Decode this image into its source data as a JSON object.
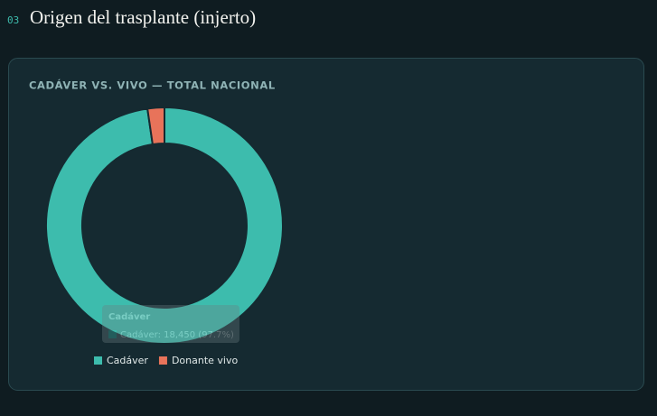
{
  "section_number": "03",
  "section_title": "Origen del trasplante (injerto)",
  "chart_data": {
    "type": "pie",
    "title": "CADÁVER VS. VIVO — TOTAL NACIONAL",
    "categories": [
      "Cadáver",
      "Donante vivo"
    ],
    "values": [
      97.7,
      2.3
    ],
    "colors": [
      "#3dbcad",
      "#e8735a"
    ],
    "legend": "bottom",
    "tooltip": {
      "title": "Cadáver",
      "text": "Cadáver: 18,450 (97.7%)"
    }
  }
}
